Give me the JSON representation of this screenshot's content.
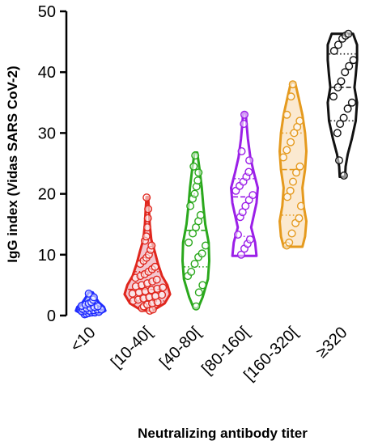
{
  "chart_data": {
    "type": "violin",
    "xlabel": "Neutralizing antibody titer",
    "ylabel": "IgG index (Vidas SARS CoV-2)",
    "ylim": [
      0,
      50
    ],
    "yticks": [
      0,
      10,
      20,
      30,
      40,
      50
    ],
    "grid": false,
    "categories": [
      "<10",
      "[10-40[",
      "[40-80[",
      "[80-160[",
      "[160-320[",
      "≥320"
    ],
    "series": [
      {
        "category": "<10",
        "color": "#1f2bff",
        "fill": "#b9c8f2",
        "violin": [
          [
            0.2,
            0.3
          ],
          [
            0.8,
            0.55
          ],
          [
            1.4,
            0.5
          ],
          [
            2.2,
            0.3
          ],
          [
            3.0,
            0.18
          ],
          [
            3.8,
            0.08
          ]
        ],
        "points": [
          0.2,
          0.3,
          0.4,
          0.5,
          0.5,
          0.6,
          0.7,
          0.8,
          0.8,
          0.9,
          1.0,
          1.0,
          1.1,
          1.2,
          1.3,
          1.4,
          1.5,
          1.6,
          1.8,
          2.0,
          2.2,
          2.6,
          3.0,
          3.6
        ],
        "median": 1.0,
        "q1": 0.6,
        "q3": 1.6
      },
      {
        "category": "[10-40[",
        "color": "#e0261d",
        "fill": "#f3c6cf",
        "violin": [
          [
            0.8,
            0.2
          ],
          [
            2.0,
            0.65
          ],
          [
            3.5,
            0.85
          ],
          [
            5.0,
            0.75
          ],
          [
            6.5,
            0.55
          ],
          [
            8.5,
            0.4
          ],
          [
            10.5,
            0.28
          ],
          [
            12.5,
            0.15
          ],
          [
            15.0,
            0.09
          ],
          [
            17.5,
            0.06
          ],
          [
            19.5,
            0.03
          ]
        ],
        "points": [
          0.8,
          1.0,
          1.2,
          1.5,
          1.8,
          2.0,
          2.2,
          2.4,
          2.6,
          2.8,
          3.0,
          3.2,
          3.4,
          3.6,
          3.8,
          4.0,
          4.2,
          4.4,
          4.6,
          4.8,
          5.0,
          5.3,
          5.6,
          5.9,
          6.2,
          6.5,
          6.8,
          7.2,
          7.6,
          8.0,
          8.5,
          9.0,
          9.5,
          10.0,
          10.8,
          11.5,
          12.3,
          13.0,
          14.5,
          16.0,
          17.5,
          19.4
        ],
        "median": 4.3,
        "q1": 2.4,
        "q3": 7.2
      },
      {
        "category": "[40-80[",
        "color": "#2aa81c",
        "fill": "#ffffff",
        "violin": [
          [
            1.2,
            0.08
          ],
          [
            3.0,
            0.25
          ],
          [
            6.0,
            0.45
          ],
          [
            9.0,
            0.5
          ],
          [
            12.0,
            0.48
          ],
          [
            15.0,
            0.35
          ],
          [
            18.0,
            0.28
          ],
          [
            21.0,
            0.22
          ],
          [
            24.0,
            0.14
          ],
          [
            26.8,
            0.05
          ]
        ],
        "points": [
          1.5,
          3.8,
          5.0,
          6.5,
          7.2,
          8.5,
          9.6,
          10.2,
          11.5,
          12.0,
          13.5,
          14.5,
          15.5,
          16.5,
          18.0,
          19.2,
          20.0,
          21.2,
          22.2,
          23.5,
          24.5,
          26.3
        ],
        "median": 14.0,
        "q1": 8.0,
        "q3": 20.0
      },
      {
        "category": "[80-160[",
        "color": "#9b1fe8",
        "fill": "#ffffff",
        "violin": [
          [
            9.8,
            0.45
          ],
          [
            12.0,
            0.4
          ],
          [
            14.5,
            0.25
          ],
          [
            16.5,
            0.35
          ],
          [
            18.5,
            0.45
          ],
          [
            21.0,
            0.5
          ],
          [
            23.5,
            0.35
          ],
          [
            26.0,
            0.22
          ],
          [
            29.0,
            0.13
          ],
          [
            31.5,
            0.08
          ],
          [
            33.3,
            0.05
          ]
        ],
        "points": [
          10.0,
          11.0,
          11.8,
          12.5,
          13.3,
          16.2,
          17.0,
          18.0,
          19.0,
          19.8,
          20.5,
          21.3,
          22.0,
          22.8,
          23.6,
          25.5,
          27.0,
          31.5,
          33.0
        ],
        "median": 19.5,
        "q1": 13.0,
        "q3": 22.5
      },
      {
        "category": "[160-320[",
        "color": "#e59a1e",
        "fill": "#fbe9d0",
        "violin": [
          [
            11.3,
            0.35
          ],
          [
            13.0,
            0.45
          ],
          [
            15.5,
            0.5
          ],
          [
            18.0,
            0.4
          ],
          [
            21.0,
            0.35
          ],
          [
            24.0,
            0.45
          ],
          [
            27.0,
            0.5
          ],
          [
            30.0,
            0.45
          ],
          [
            33.0,
            0.35
          ],
          [
            36.0,
            0.2
          ],
          [
            38.3,
            0.08
          ]
        ],
        "points": [
          11.5,
          12.0,
          13.5,
          15.2,
          16.0,
          18.0,
          19.5,
          20.5,
          22.0,
          23.5,
          24.5,
          26.0,
          27.2,
          28.5,
          30.0,
          31.0,
          32.0,
          33.0,
          36.0,
          38.0
        ],
        "median": 24.0,
        "q1": 16.5,
        "q3": 30.0
      },
      {
        "category": "≥320",
        "color": "#111111",
        "fill": "#ffffff",
        "violin": [
          [
            22.8,
            0.1
          ],
          [
            24.5,
            0.12
          ],
          [
            26.5,
            0.2
          ],
          [
            29.0,
            0.35
          ],
          [
            32.0,
            0.5
          ],
          [
            35.0,
            0.55
          ],
          [
            37.5,
            0.45
          ],
          [
            39.5,
            0.5
          ],
          [
            42.0,
            0.55
          ],
          [
            44.5,
            0.55
          ],
          [
            46.3,
            0.4
          ]
        ],
        "points": [
          23.0,
          25.5,
          30.0,
          31.5,
          32.5,
          34.0,
          35.0,
          36.0,
          37.5,
          38.5,
          40.0,
          41.0,
          42.0,
          43.5,
          44.5,
          45.5,
          46.0,
          46.3
        ],
        "median": 37.5,
        "q1": 32.0,
        "q3": 43.0
      }
    ]
  }
}
